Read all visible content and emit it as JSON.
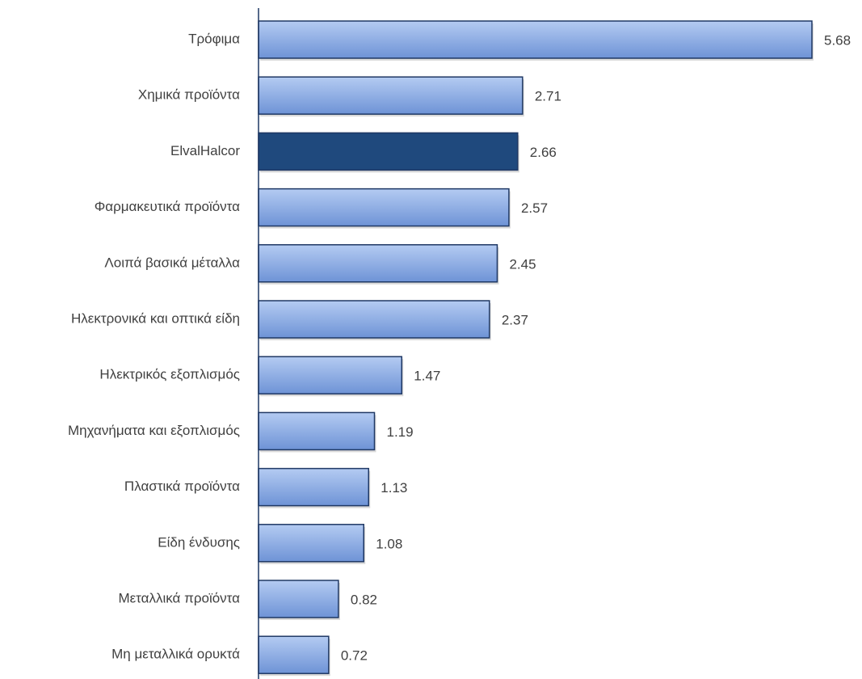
{
  "chart_data": {
    "type": "barh",
    "categories": [
      "Τρόφιμα",
      "Χημικά προϊόντα",
      "ElvalHalcor",
      "Φαρμακευτικά προϊόντα",
      "Λοιπά βασικά μέταλλα",
      "Ηλεκτρονικά και οπτικά είδη",
      "Ηλεκτρικός εξοπλισμός",
      "Μηχανήματα και εξοπλισμός",
      "Πλαστικά προϊόντα",
      "Είδη ένδυσης",
      "Μεταλλικά προϊόντα",
      "Μη μεταλλικά ορυκτά"
    ],
    "values": [
      5.68,
      2.71,
      2.66,
      2.57,
      2.45,
      2.37,
      1.47,
      1.19,
      1.13,
      1.08,
      0.82,
      0.72
    ],
    "colors": [
      "#8aabe3",
      "#8aabe3",
      "#1f497d",
      "#8aabe3",
      "#8aabe3",
      "#8aabe3",
      "#8aabe3",
      "#8aabe3",
      "#8aabe3",
      "#8aabe3",
      "#8aabe3",
      "#8aabe3"
    ]
  }
}
